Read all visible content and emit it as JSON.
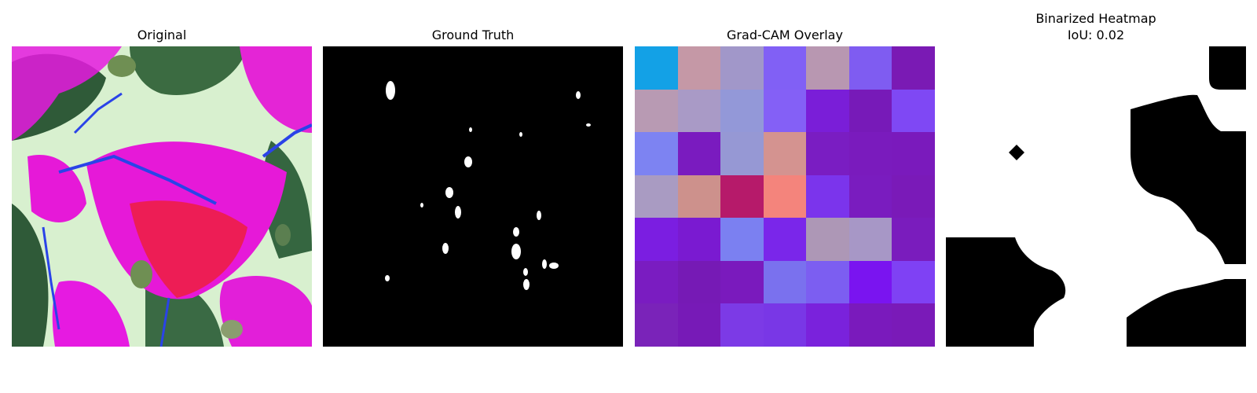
{
  "titles": {
    "original": "Original",
    "ground_truth": "Ground Truth",
    "gradcam": "Grad-CAM Overlay",
    "binarized_line1": "Binarized Heatmap",
    "binarized_line2": "IoU: 0.02"
  },
  "gradcam_cells": [
    "#13a1e6",
    "#c598a6",
    "#a197c9",
    "#8160f5",
    "#b897b1",
    "#7f5cf1",
    "#7a1ab4",
    "#b89ab3",
    "#a99ac6",
    "#9398d8",
    "#8460f6",
    "#7a1ed8",
    "#771ab8",
    "#7f48f4",
    "#7d83f2",
    "#7a1bbf",
    "#9698d4",
    "#d49390",
    "#7a1dc2",
    "#7a1bbd",
    "#7a1abc",
    "#a99bc2",
    "#cd918c",
    "#b61a6a",
    "#f4847c",
    "#7b34ec",
    "#7a1cbf",
    "#7a1ab8",
    "#7b1ee1",
    "#7a1ad1",
    "#7b80f1",
    "#7a26ea",
    "#ad97b6",
    "#a797c6",
    "#7a1cbd",
    "#7a1cc1",
    "#761ab5",
    "#7a1abd",
    "#7a71ee",
    "#7c5ef1",
    "#7a14f0",
    "#7f41f4",
    "#7a23b9",
    "#771ab7",
    "#7c3ae6",
    "#7937e6",
    "#7a22dc",
    "#7a1abc",
    "#7a1ab8"
  ]
}
